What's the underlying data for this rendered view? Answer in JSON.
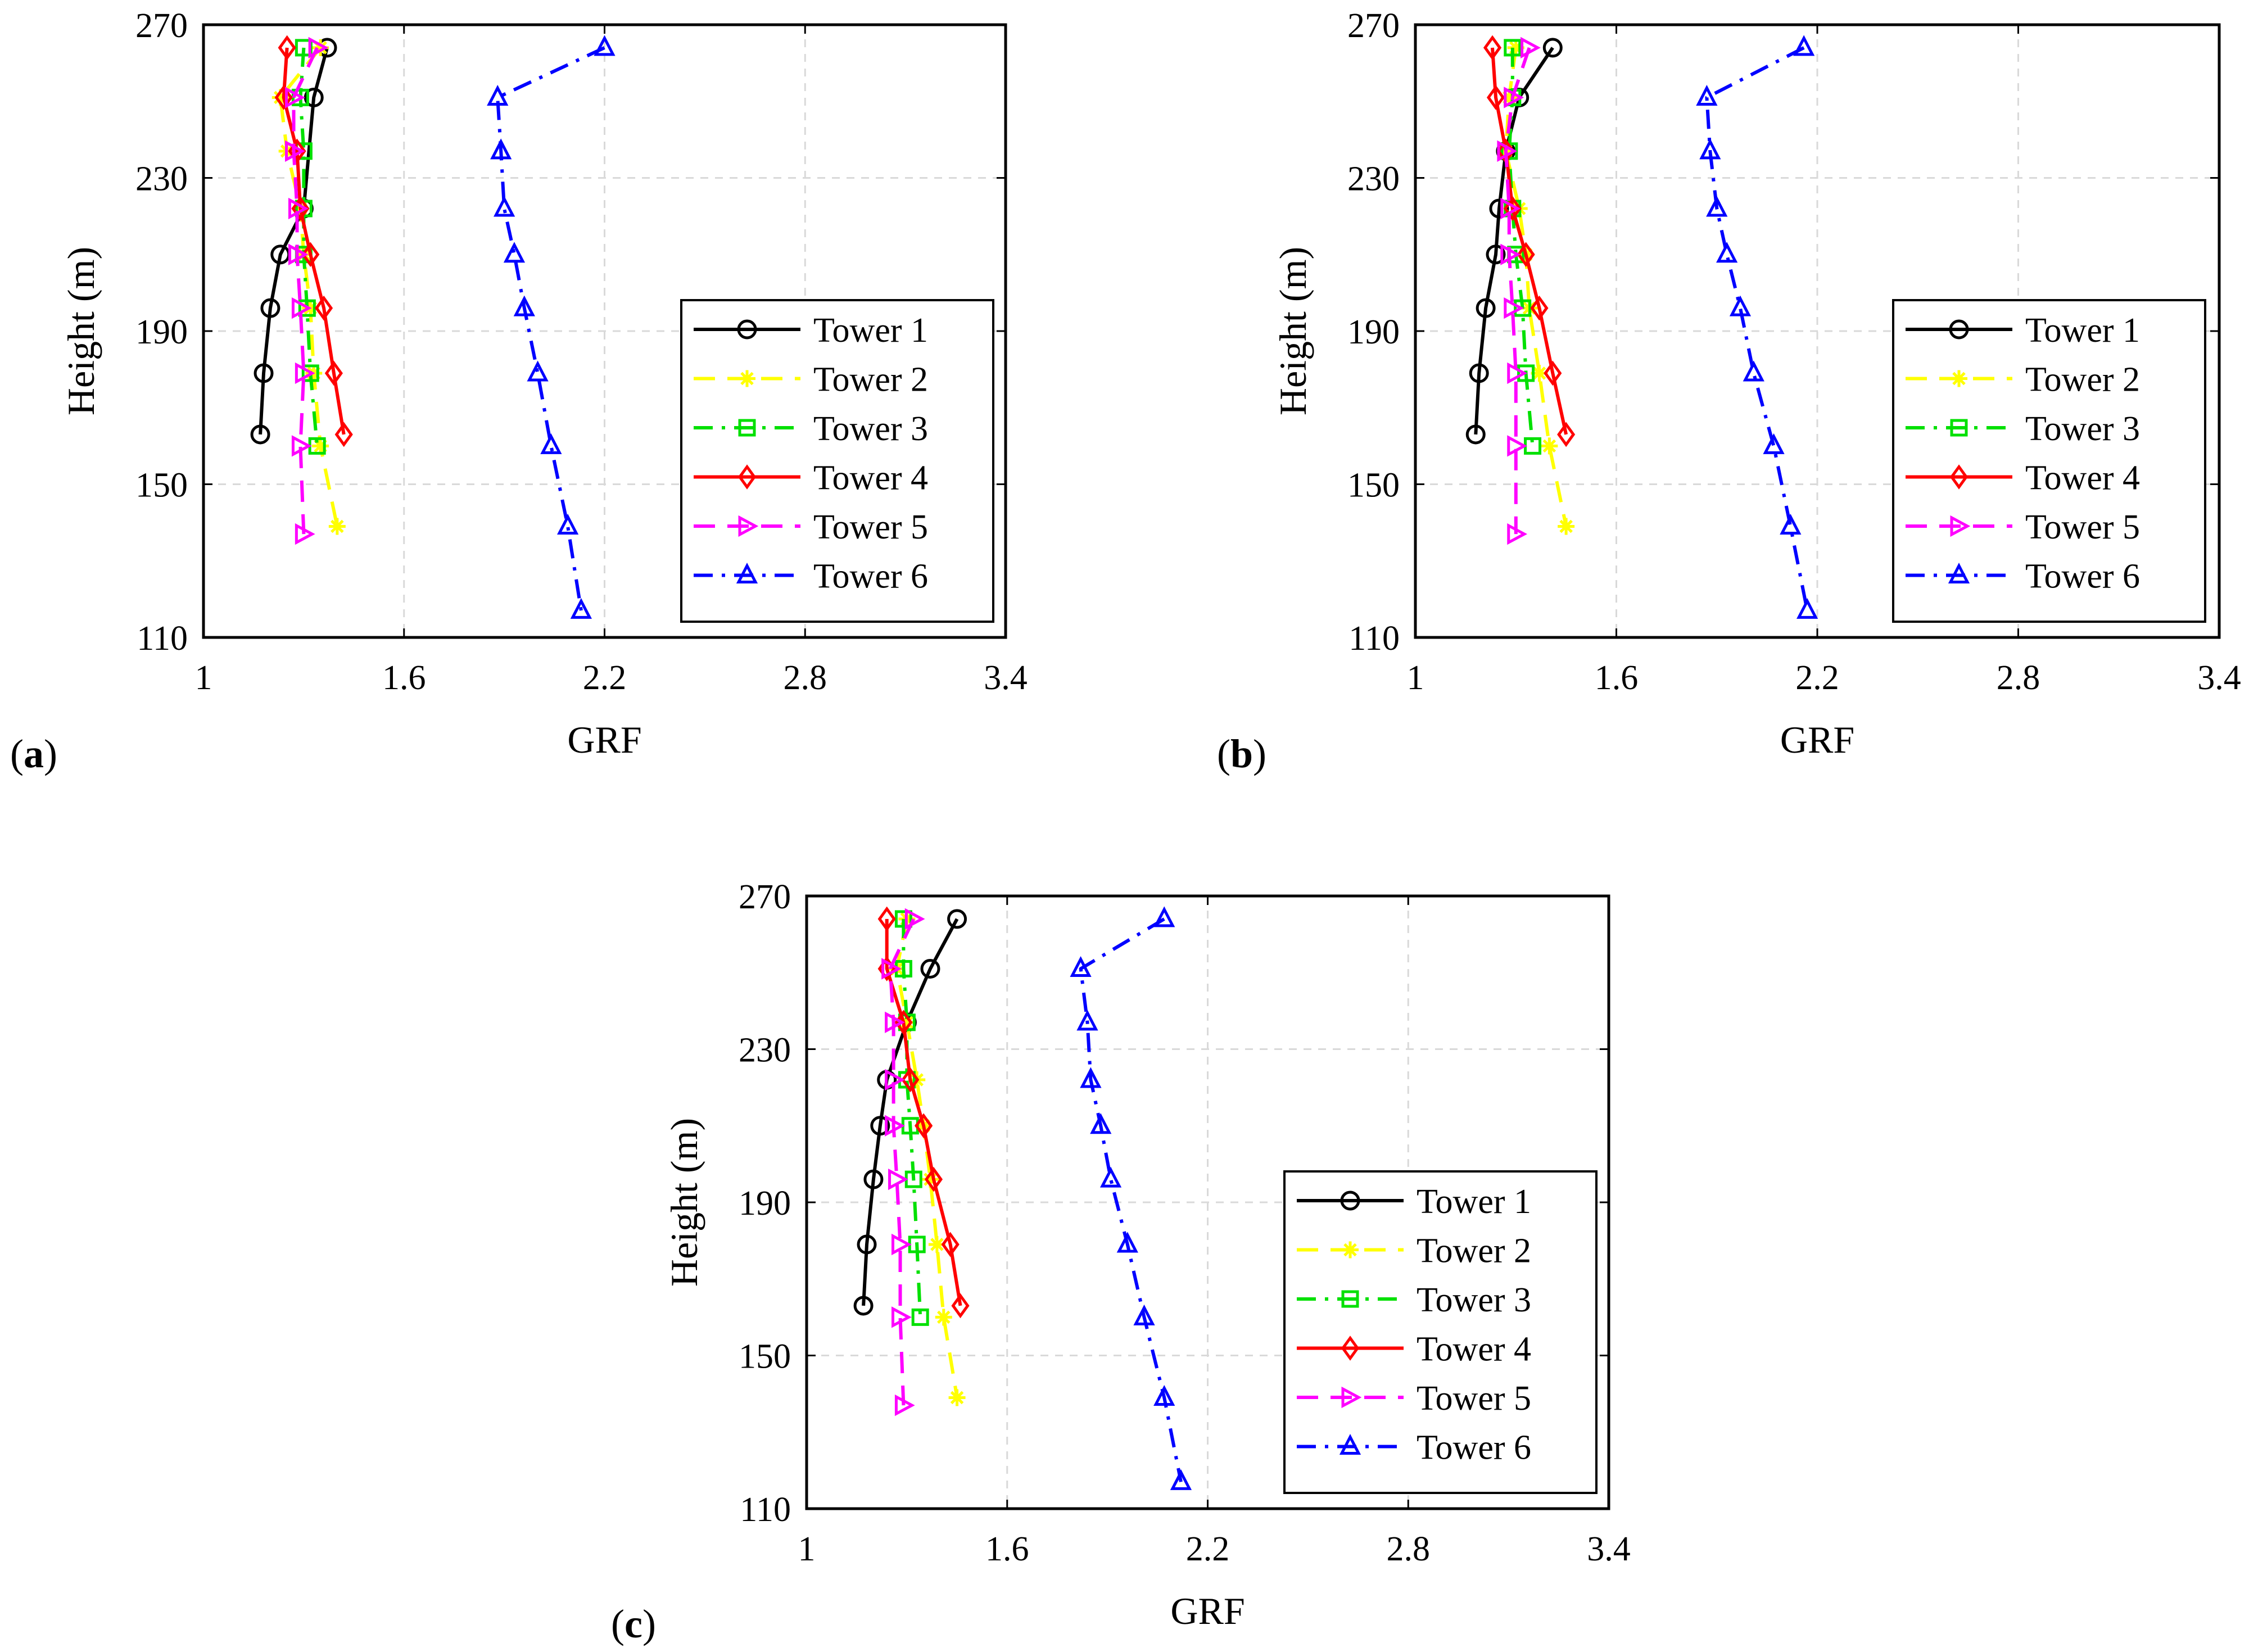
{
  "figure": {
    "style": {
      "tower_colors": [
        "#000000",
        "#ffff00",
        "#00e000",
        "#ff0000",
        "#ff00ff",
        "#0000ff"
      ],
      "grid_color": "#d9d9d9",
      "markers": [
        "circle",
        "asterisk",
        "square",
        "diamond",
        "triangle-right",
        "triangle-up"
      ],
      "line_styles": [
        "solid",
        "dashed",
        "dash-dot",
        "solid",
        "dashed",
        "dash-dot"
      ]
    }
  },
  "chart_data": [
    {
      "type": "line",
      "panel_label": "a",
      "xlabel": "GRF",
      "ylabel": "Height (m)",
      "xlim": [
        1,
        3.4
      ],
      "ylim": [
        110,
        270
      ],
      "xticks": [
        "1",
        "1.6",
        "2.2",
        "2.8",
        "3.4"
      ],
      "yticks": [
        "110",
        "150",
        "190",
        "230",
        "270"
      ],
      "grid": true,
      "legend_position": "lower-right",
      "series": [
        {
          "name": "Tower 1",
          "points": [
            [
              1.37,
              264
            ],
            [
              1.33,
              251
            ],
            [
              1.3,
              222
            ],
            [
              1.23,
              210
            ],
            [
              1.2,
              196
            ],
            [
              1.18,
              179
            ],
            [
              1.17,
              163
            ]
          ]
        },
        {
          "name": "Tower 2",
          "points": [
            [
              1.35,
              264
            ],
            [
              1.23,
              251
            ],
            [
              1.25,
              237
            ],
            [
              1.29,
              222
            ],
            [
              1.3,
              210
            ],
            [
              1.32,
              196
            ],
            [
              1.33,
              179
            ],
            [
              1.35,
              160
            ],
            [
              1.4,
              139
            ]
          ]
        },
        {
          "name": "Tower 3",
          "points": [
            [
              1.3,
              264
            ],
            [
              1.29,
              251
            ],
            [
              1.3,
              237
            ],
            [
              1.3,
              222
            ],
            [
              1.3,
              210
            ],
            [
              1.31,
              196
            ],
            [
              1.32,
              179
            ],
            [
              1.34,
              160
            ]
          ]
        },
        {
          "name": "Tower 4",
          "points": [
            [
              1.25,
              264
            ],
            [
              1.24,
              251
            ],
            [
              1.28,
              237
            ],
            [
              1.29,
              222
            ],
            [
              1.32,
              210
            ],
            [
              1.36,
              196
            ],
            [
              1.39,
              179
            ],
            [
              1.42,
              163
            ]
          ]
        },
        {
          "name": "Tower 5",
          "points": [
            [
              1.34,
              264
            ],
            [
              1.27,
              251
            ],
            [
              1.27,
              237
            ],
            [
              1.28,
              222
            ],
            [
              1.28,
              210
            ],
            [
              1.29,
              196
            ],
            [
              1.3,
              179
            ],
            [
              1.29,
              160
            ],
            [
              1.3,
              137
            ]
          ]
        },
        {
          "name": "Tower 6",
          "points": [
            [
              2.2,
              264
            ],
            [
              1.88,
              251
            ],
            [
              1.89,
              237
            ],
            [
              1.9,
              222
            ],
            [
              1.93,
              210
            ],
            [
              1.96,
              196
            ],
            [
              2.0,
              179
            ],
            [
              2.04,
              160
            ],
            [
              2.09,
              139
            ],
            [
              2.13,
              117
            ]
          ]
        }
      ]
    },
    {
      "type": "line",
      "panel_label": "b",
      "xlabel": "GRF",
      "ylabel": "Height (m)",
      "xlim": [
        1,
        3.4
      ],
      "ylim": [
        110,
        270
      ],
      "xticks": [
        "1",
        "1.6",
        "2.2",
        "2.8",
        "3.4"
      ],
      "yticks": [
        "110",
        "150",
        "190",
        "230",
        "270"
      ],
      "grid": true,
      "legend_position": "lower-right",
      "series": [
        {
          "name": "Tower 1",
          "points": [
            [
              1.41,
              264
            ],
            [
              1.31,
              251
            ],
            [
              1.27,
              237
            ],
            [
              1.25,
              222
            ],
            [
              1.24,
              210
            ],
            [
              1.21,
              196
            ],
            [
              1.19,
              179
            ],
            [
              1.18,
              163
            ]
          ]
        },
        {
          "name": "Tower 2",
          "points": [
            [
              1.3,
              264
            ],
            [
              1.28,
              251
            ],
            [
              1.27,
              237
            ],
            [
              1.31,
              222
            ],
            [
              1.33,
              210
            ],
            [
              1.34,
              196
            ],
            [
              1.37,
              179
            ],
            [
              1.4,
              160
            ],
            [
              1.45,
              139
            ]
          ]
        },
        {
          "name": "Tower 3",
          "points": [
            [
              1.29,
              264
            ],
            [
              1.29,
              251
            ],
            [
              1.28,
              237
            ],
            [
              1.29,
              222
            ],
            [
              1.3,
              210
            ],
            [
              1.32,
              196
            ],
            [
              1.33,
              179
            ],
            [
              1.35,
              160
            ]
          ]
        },
        {
          "name": "Tower 4",
          "points": [
            [
              1.23,
              264
            ],
            [
              1.24,
              251
            ],
            [
              1.27,
              237
            ],
            [
              1.29,
              222
            ],
            [
              1.33,
              210
            ],
            [
              1.37,
              196
            ],
            [
              1.41,
              179
            ],
            [
              1.45,
              163
            ]
          ]
        },
        {
          "name": "Tower 5",
          "points": [
            [
              1.34,
              264
            ],
            [
              1.29,
              251
            ],
            [
              1.27,
              237
            ],
            [
              1.28,
              222
            ],
            [
              1.28,
              210
            ],
            [
              1.29,
              196
            ],
            [
              1.3,
              179
            ],
            [
              1.3,
              160
            ],
            [
              1.3,
              137
            ]
          ]
        },
        {
          "name": "Tower 6",
          "points": [
            [
              2.16,
              264
            ],
            [
              1.87,
              251
            ],
            [
              1.88,
              237
            ],
            [
              1.9,
              222
            ],
            [
              1.93,
              210
            ],
            [
              1.97,
              196
            ],
            [
              2.01,
              179
            ],
            [
              2.07,
              160
            ],
            [
              2.12,
              139
            ],
            [
              2.17,
              117
            ]
          ]
        }
      ]
    },
    {
      "type": "line",
      "panel_label": "c",
      "xlabel": "GRF",
      "ylabel": "Height (m)",
      "xlim": [
        1,
        3.4
      ],
      "ylim": [
        110,
        270
      ],
      "xticks": [
        "1",
        "1.6",
        "2.2",
        "2.8",
        "3.4"
      ],
      "yticks": [
        "110",
        "150",
        "190",
        "230",
        "270"
      ],
      "grid": true,
      "legend_position": "lower-right",
      "series": [
        {
          "name": "Tower 1",
          "points": [
            [
              1.45,
              264
            ],
            [
              1.37,
              251
            ],
            [
              1.3,
              237
            ],
            [
              1.24,
              222
            ],
            [
              1.22,
              210
            ],
            [
              1.2,
              196
            ],
            [
              1.18,
              179
            ],
            [
              1.17,
              163
            ]
          ]
        },
        {
          "name": "Tower 2",
          "points": [
            [
              1.3,
              264
            ],
            [
              1.27,
              251
            ],
            [
              1.3,
              237
            ],
            [
              1.33,
              222
            ],
            [
              1.35,
              210
            ],
            [
              1.37,
              196
            ],
            [
              1.39,
              179
            ],
            [
              1.41,
              160
            ],
            [
              1.45,
              139
            ]
          ]
        },
        {
          "name": "Tower 3",
          "points": [
            [
              1.29,
              264
            ],
            [
              1.29,
              251
            ],
            [
              1.3,
              237
            ],
            [
              1.3,
              222
            ],
            [
              1.31,
              210
            ],
            [
              1.32,
              196
            ],
            [
              1.33,
              179
            ],
            [
              1.34,
              160
            ]
          ]
        },
        {
          "name": "Tower 4",
          "points": [
            [
              1.24,
              264
            ],
            [
              1.24,
              251
            ],
            [
              1.29,
              237
            ],
            [
              1.31,
              222
            ],
            [
              1.35,
              210
            ],
            [
              1.38,
              196
            ],
            [
              1.43,
              179
            ],
            [
              1.46,
              163
            ]
          ]
        },
        {
          "name": "Tower 5",
          "points": [
            [
              1.32,
              264
            ],
            [
              1.25,
              251
            ],
            [
              1.26,
              237
            ],
            [
              1.26,
              222
            ],
            [
              1.26,
              210
            ],
            [
              1.27,
              196
            ],
            [
              1.28,
              179
            ],
            [
              1.28,
              160
            ],
            [
              1.29,
              137
            ]
          ]
        },
        {
          "name": "Tower 6",
          "points": [
            [
              2.07,
              264
            ],
            [
              1.82,
              251
            ],
            [
              1.84,
              237
            ],
            [
              1.85,
              222
            ],
            [
              1.88,
              210
            ],
            [
              1.91,
              196
            ],
            [
              1.96,
              179
            ],
            [
              2.01,
              160
            ],
            [
              2.07,
              139
            ],
            [
              2.12,
              117
            ]
          ]
        }
      ]
    }
  ]
}
